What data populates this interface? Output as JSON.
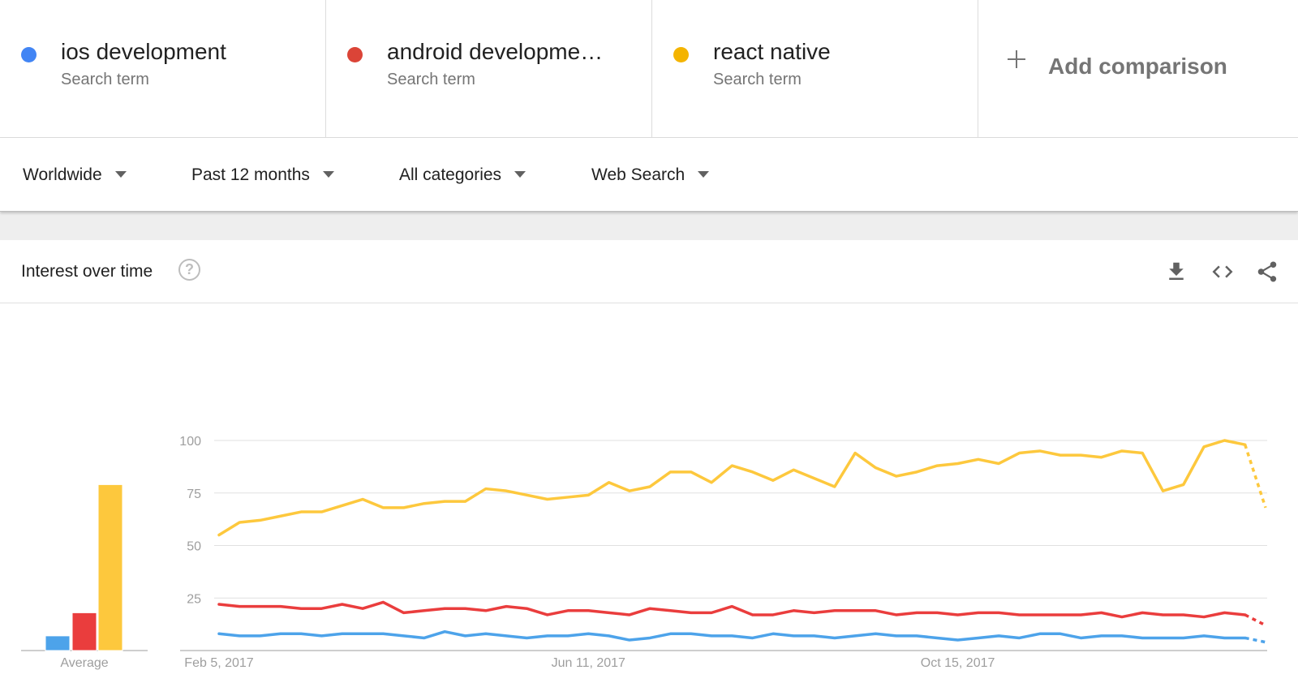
{
  "terms": [
    {
      "label": "ios development",
      "sub": "Search term",
      "color": "#4285f4"
    },
    {
      "label": "android developme…",
      "sub": "Search term",
      "color": "#db4437"
    },
    {
      "label": "react native",
      "sub": "Search term",
      "color": "#f4b400"
    }
  ],
  "add_comparison": {
    "label": "Add comparison"
  },
  "filters": {
    "region": "Worldwide",
    "time": "Past 12 months",
    "category": "All categories",
    "search_type": "Web Search"
  },
  "card": {
    "title": "Interest over time",
    "help_glyph": "?",
    "icons": [
      "download-icon",
      "embed-code-icon",
      "share-icon"
    ]
  },
  "chart_data": {
    "type": "line",
    "ylim": [
      0,
      100
    ],
    "yticks": [
      25,
      50,
      75,
      100
    ],
    "x_tick_labels": [
      "Feb 5, 2017",
      "Jun 11, 2017",
      "Oct 15, 2017"
    ],
    "x_tick_indices": [
      0,
      18,
      36
    ],
    "grid": true,
    "last_point_partial": true,
    "average_label": "Average",
    "averages": [
      7,
      18,
      79
    ],
    "series": [
      {
        "name": "ios development",
        "color": "#4da3ea",
        "values": [
          8,
          7,
          7,
          8,
          8,
          7,
          8,
          8,
          8,
          7,
          6,
          9,
          7,
          8,
          7,
          6,
          7,
          7,
          8,
          7,
          5,
          6,
          8,
          8,
          7,
          7,
          6,
          8,
          7,
          7,
          6,
          7,
          8,
          7,
          7,
          6,
          5,
          6,
          7,
          6,
          8,
          8,
          6,
          7,
          7,
          6,
          6,
          6,
          7,
          6,
          6,
          4
        ]
      },
      {
        "name": "android developme…",
        "color": "#ea3d3d",
        "values": [
          22,
          21,
          21,
          21,
          20,
          20,
          22,
          20,
          23,
          18,
          19,
          20,
          20,
          19,
          21,
          20,
          17,
          19,
          19,
          18,
          17,
          20,
          19,
          18,
          18,
          21,
          17,
          17,
          19,
          18,
          19,
          19,
          19,
          17,
          18,
          18,
          17,
          18,
          18,
          17,
          17,
          17,
          17,
          18,
          16,
          18,
          17,
          17,
          16,
          18,
          17,
          12
        ]
      },
      {
        "name": "react native",
        "color": "#fdc83d",
        "values": [
          55,
          61,
          62,
          64,
          66,
          66,
          69,
          72,
          68,
          68,
          70,
          71,
          71,
          77,
          76,
          74,
          72,
          73,
          74,
          80,
          76,
          78,
          85,
          85,
          80,
          88,
          85,
          81,
          86,
          82,
          78,
          94,
          87,
          83,
          85,
          88,
          89,
          91,
          89,
          94,
          95,
          93,
          93,
          92,
          95,
          94,
          76,
          79,
          97,
          100,
          98,
          68
        ]
      }
    ]
  }
}
